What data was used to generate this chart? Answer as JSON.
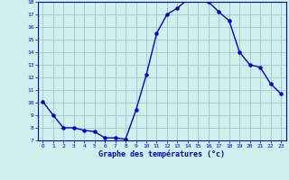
{
  "x": [
    0,
    1,
    2,
    3,
    4,
    5,
    6,
    7,
    8,
    9,
    10,
    11,
    12,
    13,
    14,
    15,
    16,
    17,
    18,
    19,
    20,
    21,
    22,
    23
  ],
  "y": [
    10.1,
    9.0,
    8.0,
    8.0,
    7.8,
    7.7,
    7.2,
    7.2,
    7.1,
    9.4,
    12.2,
    15.5,
    17.0,
    17.5,
    18.2,
    18.2,
    18.0,
    17.2,
    16.5,
    14.0,
    13.0,
    12.8,
    11.5,
    10.7
  ],
  "xlim": [
    -0.5,
    23.5
  ],
  "ylim": [
    7,
    18
  ],
  "yticks": [
    7,
    8,
    9,
    10,
    11,
    12,
    13,
    14,
    15,
    16,
    17,
    18
  ],
  "xticks": [
    0,
    1,
    2,
    3,
    4,
    5,
    6,
    7,
    8,
    9,
    10,
    11,
    12,
    13,
    14,
    15,
    16,
    17,
    18,
    19,
    20,
    21,
    22,
    23
  ],
  "xlabel": "Graphe des températures (°c)",
  "line_color": "#0000cc",
  "marker": "o",
  "marker_size": 2.2,
  "bg_color": "#d0f0f0",
  "grid_color": "#a0c8c8",
  "axis_label_color": "#0000cc",
  "tick_color": "#0000cc",
  "line_width": 1.0
}
